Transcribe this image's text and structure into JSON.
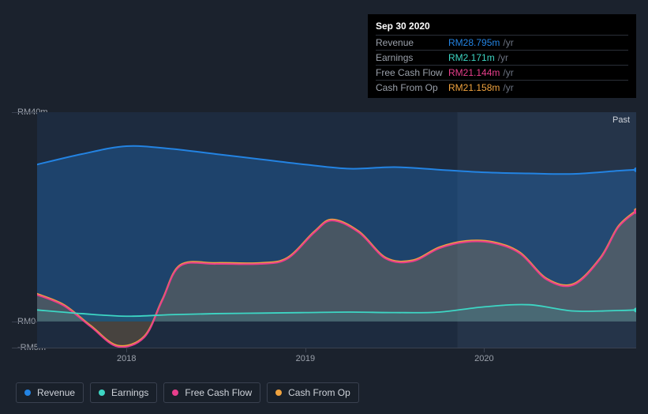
{
  "tooltip": {
    "date": "Sep 30 2020",
    "rows": [
      {
        "label": "Revenue",
        "value": "RM28.795m",
        "suffix": "/yr",
        "color": "#2383e2"
      },
      {
        "label": "Earnings",
        "value": "RM2.171m",
        "suffix": "/yr",
        "color": "#3dd6c4"
      },
      {
        "label": "Free Cash Flow",
        "value": "RM21.144m",
        "suffix": "/yr",
        "color": "#e83e8c"
      },
      {
        "label": "Cash From Op",
        "value": "RM21.158m",
        "suffix": "/yr",
        "color": "#f0a33f"
      }
    ]
  },
  "chart": {
    "type": "area",
    "background_left": "#1d2b3f",
    "background_right": "#253449",
    "grid_color": "#3a4150",
    "past_label": "Past",
    "y_axis": {
      "min": -5,
      "max": 40,
      "unit_prefix": "RM",
      "unit_suffix": "m",
      "ticks": [
        {
          "v": 40,
          "label": "RM40m"
        },
        {
          "v": 0,
          "label": "RM0"
        },
        {
          "v": -5,
          "label": "-RM5m"
        }
      ]
    },
    "x_axis": {
      "min": 2017.5,
      "max": 2020.85,
      "ticks": [
        {
          "v": 2018,
          "label": "2018"
        },
        {
          "v": 2019,
          "label": "2019"
        },
        {
          "v": 2020,
          "label": "2020"
        }
      ]
    },
    "divider_x": 2019.85,
    "series": [
      {
        "name": "Revenue",
        "color": "#2383e2",
        "fill_opacity": 0.28,
        "line_width": 2,
        "points": [
          [
            2017.5,
            30
          ],
          [
            2017.75,
            32
          ],
          [
            2018,
            33.5
          ],
          [
            2018.25,
            33
          ],
          [
            2018.5,
            32
          ],
          [
            2018.75,
            31
          ],
          [
            2019,
            30
          ],
          [
            2019.25,
            29.2
          ],
          [
            2019.5,
            29.5
          ],
          [
            2019.75,
            29
          ],
          [
            2020,
            28.5
          ],
          [
            2020.25,
            28.3
          ],
          [
            2020.5,
            28.2
          ],
          [
            2020.75,
            28.8
          ],
          [
            2020.85,
            29.0
          ]
        ]
      },
      {
        "name": "Earnings",
        "color": "#3dd6c4",
        "fill_opacity": 0.12,
        "line_width": 1.8,
        "points": [
          [
            2017.5,
            2.2
          ],
          [
            2017.75,
            1.5
          ],
          [
            2018,
            1.0
          ],
          [
            2018.25,
            1.3
          ],
          [
            2018.5,
            1.5
          ],
          [
            2018.75,
            1.6
          ],
          [
            2019,
            1.7
          ],
          [
            2019.25,
            1.8
          ],
          [
            2019.5,
            1.7
          ],
          [
            2019.75,
            1.8
          ],
          [
            2020,
            2.8
          ],
          [
            2020.25,
            3.2
          ],
          [
            2020.5,
            2.0
          ],
          [
            2020.75,
            2.1
          ],
          [
            2020.85,
            2.2
          ]
        ]
      },
      {
        "name": "Free Cash Flow",
        "color": "#e83e8c",
        "fill_opacity": 0.0,
        "line_width": 2,
        "points": [
          [
            2017.5,
            5.1
          ],
          [
            2017.65,
            3.0
          ],
          [
            2017.8,
            -1.0
          ],
          [
            2017.95,
            -4.8
          ],
          [
            2018.1,
            -3.0
          ],
          [
            2018.2,
            4.0
          ],
          [
            2018.3,
            10.6
          ],
          [
            2018.5,
            11.0
          ],
          [
            2018.75,
            11.0
          ],
          [
            2018.9,
            12.0
          ],
          [
            2019.05,
            17.0
          ],
          [
            2019.15,
            19.3
          ],
          [
            2019.3,
            17.0
          ],
          [
            2019.45,
            12.0
          ],
          [
            2019.6,
            11.5
          ],
          [
            2019.75,
            14.0
          ],
          [
            2019.9,
            15.2
          ],
          [
            2020.05,
            15.0
          ],
          [
            2020.2,
            13.0
          ],
          [
            2020.35,
            8.0
          ],
          [
            2020.5,
            7.0
          ],
          [
            2020.65,
            12.0
          ],
          [
            2020.75,
            18.0
          ],
          [
            2020.85,
            21.0
          ]
        ]
      },
      {
        "name": "Cash From Op",
        "color": "#f0a33f",
        "fill_opacity": 0.2,
        "line_width": 2,
        "points": [
          [
            2017.5,
            5.3
          ],
          [
            2017.65,
            3.2
          ],
          [
            2017.8,
            -0.8
          ],
          [
            2017.95,
            -4.6
          ],
          [
            2018.1,
            -2.8
          ],
          [
            2018.2,
            4.2
          ],
          [
            2018.3,
            10.8
          ],
          [
            2018.5,
            11.2
          ],
          [
            2018.75,
            11.2
          ],
          [
            2018.9,
            12.2
          ],
          [
            2019.05,
            17.2
          ],
          [
            2019.15,
            19.5
          ],
          [
            2019.3,
            17.2
          ],
          [
            2019.45,
            12.2
          ],
          [
            2019.6,
            11.7
          ],
          [
            2019.75,
            14.2
          ],
          [
            2019.9,
            15.4
          ],
          [
            2020.05,
            15.2
          ],
          [
            2020.2,
            13.2
          ],
          [
            2020.35,
            8.2
          ],
          [
            2020.5,
            7.2
          ],
          [
            2020.65,
            12.2
          ],
          [
            2020.75,
            18.2
          ],
          [
            2020.85,
            21.2
          ]
        ]
      }
    ]
  },
  "legend": [
    {
      "label": "Revenue",
      "color": "#2383e2"
    },
    {
      "label": "Earnings",
      "color": "#3dd6c4"
    },
    {
      "label": "Free Cash Flow",
      "color": "#e83e8c"
    },
    {
      "label": "Cash From Op",
      "color": "#f0a33f"
    }
  ]
}
